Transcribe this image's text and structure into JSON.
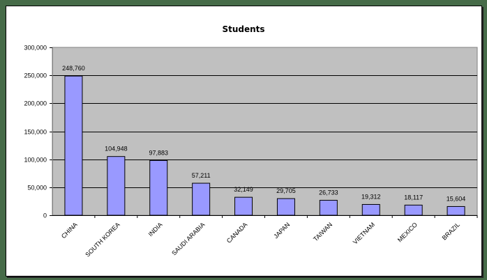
{
  "chart_data": {
    "type": "bar",
    "title": "Students",
    "xlabel": "",
    "ylabel": "",
    "ylim": [
      0,
      300000
    ],
    "yticks": [
      0,
      50000,
      100000,
      150000,
      200000,
      250000,
      300000
    ],
    "ytick_labels": [
      "0",
      "50,000",
      "100,000",
      "150,000",
      "200,000",
      "250,000",
      "300,000"
    ],
    "grid": true,
    "legend": "none",
    "categories": [
      "CHINA",
      "SOUTH KOREA",
      "INDIA",
      "SAUDI ARABIA",
      "CANADA",
      "JAPAN",
      "TAIWAN",
      "VIETNAM",
      "MEXICO",
      "BRAZIL"
    ],
    "values": [
      248760,
      104948,
      97883,
      57211,
      32149,
      29705,
      26733,
      19312,
      18117,
      15604
    ],
    "data_labels": [
      "248,760",
      "104,948",
      "97,883",
      "57,211",
      "32,149",
      "29,705",
      "26,733",
      "19,312",
      "18,117",
      "15,604"
    ],
    "colors": {
      "bar": "#9999ff",
      "plot_bg": "#c0c0c0",
      "frame": "#466b48"
    }
  }
}
